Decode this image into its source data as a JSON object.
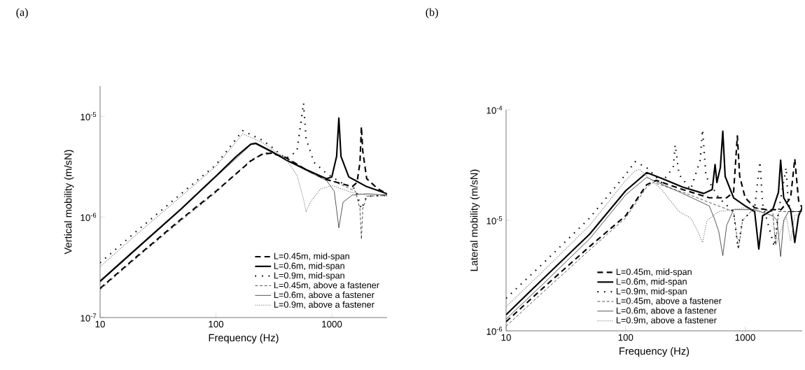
{
  "chart_data": [
    {
      "type": "line",
      "title": "(a)",
      "xlabel": "Frequency (Hz)",
      "ylabel": "Vertical mobility (m/sN)",
      "log": "xy",
      "legend": "bottom right",
      "xlim": [
        10,
        3000
      ],
      "ylim": [
        1e-07,
        2e-05
      ],
      "xticks": [
        10,
        100,
        1000
      ],
      "yticks": [
        {
          "value": 1e-07,
          "label": "10$^{-7}$"
        },
        {
          "value": 1e-06,
          "label": "10$^{-6}$"
        },
        {
          "value": 1e-05,
          "label": "10$^{-5}$"
        }
      ],
      "series": [
        {
          "name": "L=0.45m, mid-span",
          "color": "#000000",
          "line_style": "dashed",
          "x": [
            10,
            20,
            50,
            100,
            150,
            200,
            250,
            300,
            400,
            600,
            900,
            1200,
            1500,
            1650,
            1750,
            1800,
            1850,
            2000,
            2500,
            3000
          ],
          "values": [
            1.95e-07,
            3.9e-07,
            9.5e-07,
            1.8e-06,
            2.7e-06,
            3.6e-06,
            4.2e-06,
            4.3e-06,
            3.9e-06,
            2.95e-06,
            2.35e-06,
            2.15e-06,
            2e-06,
            2.2e-06,
            3.5e-06,
            7.9e-06,
            4.5e-06,
            2.4e-06,
            1.9e-06,
            1.7e-06
          ]
        },
        {
          "name": "L=0.6m, mid-span",
          "color": "#000000",
          "line_style": "solid",
          "x": [
            10,
            20,
            50,
            100,
            150,
            200,
            220,
            300,
            400,
            600,
            900,
            1000,
            1100,
            1150,
            1200,
            1400,
            2000,
            3000
          ],
          "values": [
            2.3e-07,
            4.7e-07,
            1.2e-06,
            2.55e-06,
            4e-06,
            5.3e-06,
            5.4e-06,
            4.5e-06,
            3.7e-06,
            2.95e-06,
            2.4e-06,
            2.5e-06,
            4e-06,
            9.6e-06,
            4e-06,
            2.5e-06,
            2e-06,
            1.7e-06
          ]
        },
        {
          "name": "L=0.9m, mid-span",
          "color": "#000000",
          "line_style": "dotted",
          "x": [
            10,
            20,
            50,
            100,
            170,
            250,
            300,
            400,
            500,
            550,
            570,
            600,
            700,
            900,
            1200,
            1600,
            1800,
            2000,
            3000
          ],
          "values": [
            3.5e-07,
            7e-07,
            1.7e-06,
            3.3e-06,
            7.2e-06,
            5.8e-06,
            5e-06,
            3.8e-06,
            4.5e-06,
            1e-05,
            1.35e-05,
            6e-06,
            3.5e-06,
            2.7e-06,
            2.2e-06,
            1.9e-06,
            1.2e-06,
            1.6e-06,
            1.65e-06
          ]
        },
        {
          "name": "L=0.45m, above a fastener",
          "color": "#000000",
          "line_style": "dashed",
          "x": [
            10,
            20,
            50,
            100,
            200,
            280,
            400,
            600,
            900,
            1200,
            1600,
            1750,
            1800,
            1850,
            2000,
            3000
          ],
          "values": [
            1.9e-07,
            3.8e-07,
            9.2e-07,
            1.75e-06,
            3.7e-06,
            4.4e-06,
            3.9e-06,
            2.95e-06,
            2.4e-06,
            2.1e-06,
            1.8e-06,
            1.2e-06,
            6e-07,
            1.2e-06,
            1.6e-06,
            1.65e-06
          ]
        },
        {
          "name": "L=0.6m, above a fastener",
          "color": "#000000",
          "line_style": "solid",
          "x": [
            10,
            20,
            50,
            100,
            200,
            220,
            300,
            600,
            900,
            1050,
            1150,
            1250,
            1500,
            2000,
            3000
          ],
          "values": [
            2.25e-07,
            4.6e-07,
            1.18e-06,
            2.5e-06,
            5.2e-06,
            5.3e-06,
            4.4e-06,
            2.9e-06,
            2.3e-06,
            1.8e-06,
            7.8e-07,
            1.4e-06,
            1.65e-06,
            1.7e-06,
            1.65e-06
          ]
        },
        {
          "name": "L=0.9m, above a fastener",
          "color": "#808080",
          "line_style": "dotted",
          "x": [
            10,
            20,
            50,
            100,
            170,
            250,
            400,
            500,
            570,
            600,
            650,
            800,
            1000,
            1500,
            2000,
            3000
          ],
          "values": [
            3.2e-07,
            6.5e-07,
            1.6e-06,
            3.2e-06,
            6.7e-06,
            5.5e-06,
            3.8e-06,
            2.6e-06,
            1.5e-06,
            1.12e-06,
            1.4e-06,
            1.9e-06,
            2.05e-06,
            1.75e-06,
            1.65e-06,
            1.6e-06
          ]
        }
      ]
    },
    {
      "type": "line",
      "title": "(b)",
      "xlabel": "Frequency (Hz)",
      "ylabel": "Lateral mobility (m/sN)",
      "log": "xy",
      "legend": "bottom",
      "xlim": [
        10,
        3000
      ],
      "ylim": [
        1e-06,
        0.0001
      ],
      "xticks": [
        10,
        100,
        1000
      ],
      "yticks": [
        {
          "value": 1e-06,
          "label": "10$^{-6}$"
        },
        {
          "value": 1e-05,
          "label": "10$^{-5}$"
        },
        {
          "value": 0.0001,
          "label": "10$^{-4}$"
        }
      ],
      "series": [
        {
          "name": "L=0.45m, mid-span",
          "color": "#000000",
          "line_style": "dashed",
          "x": [
            10,
            20,
            50,
            100,
            150,
            180,
            300,
            500,
            700,
            800,
            860,
            900,
            1000,
            1200,
            1500,
            2000,
            2400,
            2600,
            2800,
            3000
          ],
          "values": [
            1.21e-06,
            2.4e-06,
            5.8e-06,
            1.1e-05,
            2.1e-05,
            2.3e-05,
            1.9e-05,
            1.6e-05,
            1.6e-05,
            1.8e-05,
            5.8e-05,
            2.5e-05,
            1.6e-05,
            1.3e-05,
            1.25e-05,
            1.25e-05,
            1.6e-05,
            3.6e-05,
            1.5e-05,
            1.3e-05
          ]
        },
        {
          "name": "L=0.6m, mid-span",
          "color": "#000000",
          "line_style": "solid",
          "x": [
            10,
            20,
            50,
            100,
            150,
            200,
            300,
            450,
            530,
            560,
            580,
            620,
            650,
            680,
            800,
            1000,
            1200,
            1300,
            1400,
            1700,
            1900,
            1980,
            2100,
            2400,
            2600,
            2800,
            3000
          ],
          "values": [
            1.4e-06,
            2.9e-06,
            7.5e-06,
            1.85e-05,
            2.7e-05,
            2.4e-05,
            2e-05,
            1.75e-05,
            1.9e-05,
            3.2e-05,
            2.2e-05,
            3e-05,
            6.4e-05,
            2.5e-05,
            1.6e-05,
            1.35e-05,
            1.2e-05,
            5.5e-06,
            1.1e-05,
            1.25e-05,
            1.8e-05,
            3.5e-05,
            1.6e-05,
            1.25e-05,
            6.3e-06,
            1.1e-05,
            1.3e-05
          ]
        },
        {
          "name": "L=0.9m, mid-span",
          "color": "#000000",
          "line_style": "dotted",
          "x": [
            10,
            20,
            50,
            100,
            120,
            150,
            200,
            250,
            260,
            280,
            350,
            420,
            440,
            470,
            600,
            800,
            870,
            950,
            1200,
            1330,
            1400,
            1750,
            1900,
            2200,
            2300,
            2500,
            3000
          ],
          "values": [
            1.97e-06,
            4e-06,
            1.05e-05,
            2.6e-05,
            3.4e-05,
            3e-05,
            2.2e-05,
            3e-05,
            4.8e-05,
            2.6e-05,
            1.9e-05,
            3.5e-05,
            6.6e-05,
            2.5e-05,
            1.6e-05,
            1.2e-05,
            5.6e-06,
            1e-05,
            1.3e-05,
            3.4e-05,
            1.4e-05,
            5.8e-06,
            1.2e-05,
            3e-05,
            1.4e-05,
            1.2e-05,
            1.2e-05
          ]
        },
        {
          "name": "L=0.45m, above a fastener",
          "color": "#000000",
          "line_style": "dashed",
          "x": [
            10,
            20,
            50,
            100,
            150,
            170,
            300,
            500,
            800,
            880,
            950,
            1200,
            1700,
            1800,
            1900,
            3000
          ],
          "values": [
            1.1e-06,
            2.2e-06,
            5.4e-06,
            1.05e-05,
            2e-05,
            2.2e-05,
            1.8e-05,
            1.45e-05,
            1.2e-05,
            5.5e-06,
            1e-05,
            1.3e-05,
            1.2e-05,
            6e-06,
            1.2e-05,
            1.2e-05
          ]
        },
        {
          "name": "L=0.6m, above a fastener",
          "color": "#000000",
          "line_style": "solid",
          "x": [
            10,
            20,
            50,
            100,
            150,
            300,
            500,
            550,
            600,
            650,
            700,
            800,
            1200,
            1700,
            1850,
            1980,
            2100,
            2300,
            3000
          ],
          "values": [
            1.28e-06,
            2.6e-06,
            6.8e-06,
            1.7e-05,
            2.45e-05,
            1.75e-05,
            1.35e-05,
            1.05e-05,
            8e-06,
            4.8e-06,
            9e-06,
            1.25e-05,
            1.25e-05,
            1.1e-05,
            1e-05,
            4.7e-06,
            1e-05,
            1.2e-05,
            1.2e-05
          ]
        },
        {
          "name": "L=0.9m, above a fastener",
          "color": "#808080",
          "line_style": "dotted",
          "x": [
            10,
            20,
            50,
            100,
            120,
            130,
            200,
            280,
            350,
            400,
            440,
            480,
            600,
            1000,
            1700,
            1800,
            2200,
            2400,
            2600,
            3000
          ],
          "values": [
            1.65e-06,
            3.4e-06,
            9e-06,
            2.3e-05,
            2.8e-05,
            2.9e-05,
            1.9e-05,
            1.2e-05,
            1.05e-05,
            8e-06,
            6.3e-06,
            1e-05,
            1.2e-05,
            1.3e-05,
            1.1e-05,
            6e-06,
            1.1e-05,
            6.5e-06,
            1.1e-05,
            1.2e-05
          ]
        }
      ]
    }
  ]
}
